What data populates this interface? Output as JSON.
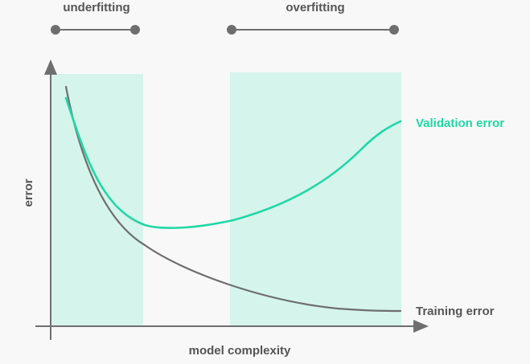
{
  "diagram": {
    "regions": {
      "underfitting": "underfitting",
      "overfitting": "overfitting"
    },
    "axes": {
      "xlabel": "model complexity",
      "ylabel": "error"
    },
    "curves": {
      "validation": "Validation error",
      "training": "Training error"
    },
    "colors": {
      "shade": "#d5f4ec",
      "accent": "#1fd7a6",
      "grey": "#6e6e6e",
      "axis": "#6f6f6f",
      "text": "#555555",
      "background": "#f8f8f8"
    }
  }
}
